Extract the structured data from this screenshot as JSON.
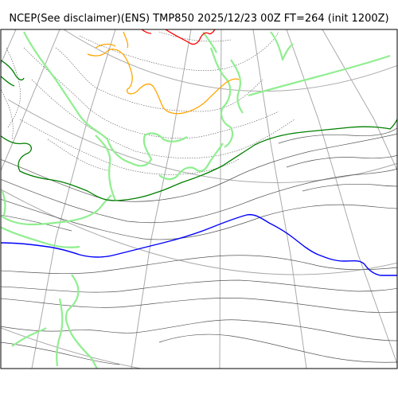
{
  "map": {
    "title": "NCEP(See disclaimer)(ENS) TMP850 2025/12/23 00Z FT=264 (init 1200Z)",
    "colors": {
      "frame": "#000000",
      "graticule": "#aaaaaa",
      "isotherm": "#555555",
      "isotherm_dotted": "#555555",
      "coastline": "#90ee90",
      "contour_green": "#008000",
      "contour_blue": "#0000ff",
      "contour_orange": "#ffa500",
      "contour_red": "#ff0000"
    }
  }
}
